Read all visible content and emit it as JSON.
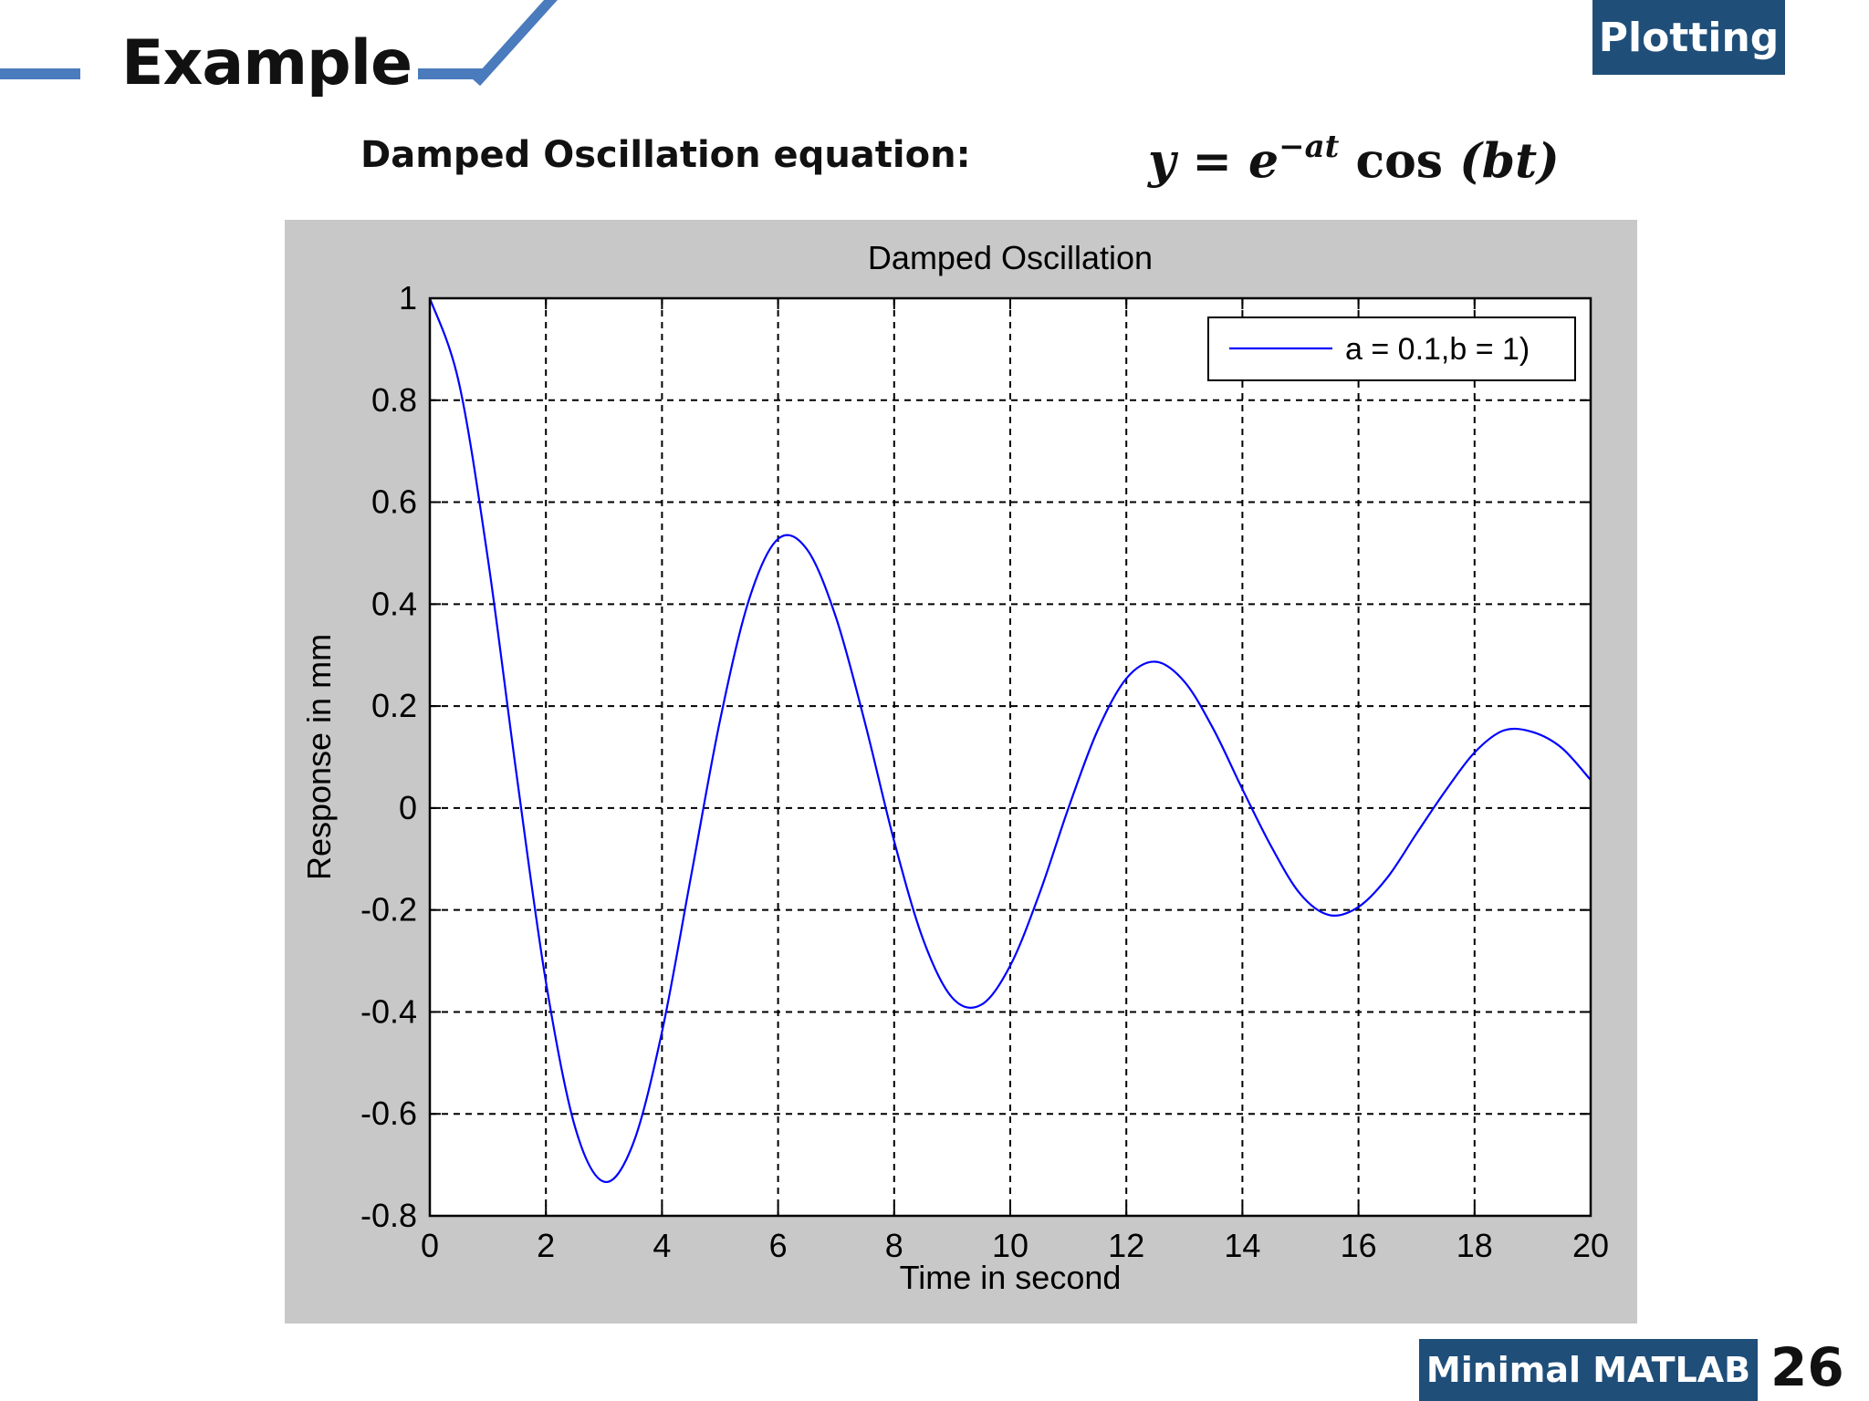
{
  "slide": {
    "title": "Example",
    "section": "Plotting",
    "subtitle": "Damped Oscillation equation:",
    "equation": {
      "lhs": "y",
      "eq": "=",
      "base": "e",
      "exponent": "−at",
      "func": "cos",
      "arg": "(bt)"
    },
    "footer": "Minimal MATLAB",
    "page_number": "26"
  },
  "colors": {
    "accent": "#4a7bbd",
    "tag_bg": "#1f4e79",
    "figure_bg": "#c8c8c8",
    "line": "#0000ff"
  },
  "chart_data": {
    "type": "line",
    "title": "Damped Oscillation",
    "xlabel": "Time in second",
    "ylabel": "Response in mm",
    "xlim": [
      0,
      20
    ],
    "ylim": [
      -0.8,
      1
    ],
    "xticks": [
      0,
      2,
      4,
      6,
      8,
      10,
      12,
      14,
      16,
      18,
      20
    ],
    "yticks": [
      -0.8,
      -0.6,
      -0.4,
      -0.2,
      0,
      0.2,
      0.4,
      0.6,
      0.8,
      1
    ],
    "grid": true,
    "legend": {
      "placement": "top-right"
    },
    "series": [
      {
        "name": "a = 0.1,b = 1)",
        "color": "#0000ff",
        "x": [
          0,
          0.5,
          1,
          1.5,
          2,
          2.5,
          3,
          3.5,
          4,
          4.5,
          5,
          5.5,
          6,
          6.5,
          7,
          7.5,
          8,
          8.5,
          9,
          9.5,
          10,
          10.5,
          11,
          11.5,
          12,
          12.5,
          13,
          13.5,
          14,
          14.5,
          15,
          15.5,
          16,
          16.5,
          17,
          17.5,
          18,
          18.5,
          19,
          19.5,
          20
        ],
        "y": [
          1,
          0.835,
          0.489,
          0.061,
          -0.341,
          -0.625,
          -0.733,
          -0.659,
          -0.439,
          -0.134,
          0.172,
          0.409,
          0.528,
          0.507,
          0.373,
          0.166,
          -0.065,
          -0.258,
          -0.372,
          -0.386,
          -0.309,
          -0.169,
          -0.001,
          0.151,
          0.254,
          0.287,
          0.248,
          0.155,
          0.037,
          -0.076,
          -0.169,
          -0.21,
          -0.194,
          -0.136,
          -0.05,
          0.034,
          0.109,
          0.152,
          0.149,
          0.118,
          0.055
        ]
      }
    ]
  }
}
